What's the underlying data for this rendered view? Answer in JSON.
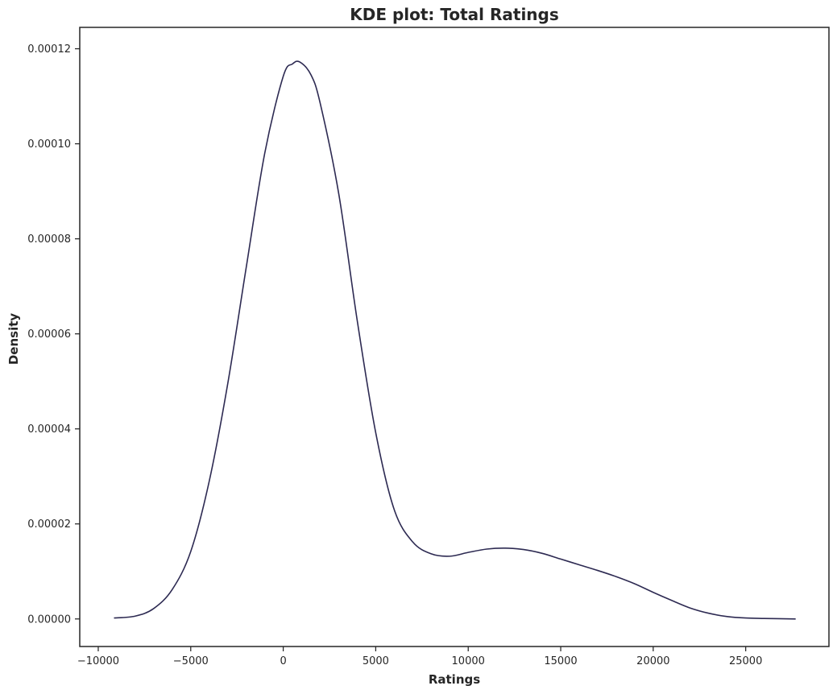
{
  "chart_data": {
    "type": "line",
    "title": "KDE plot: Total Ratings",
    "xlabel": "Ratings",
    "ylabel": "Density",
    "xlim": [
      -11000,
      29500
    ],
    "ylim": [
      -5.8e-06,
      0.0001245
    ],
    "x_ticks": [
      -10000,
      -5000,
      0,
      5000,
      10000,
      15000,
      20000,
      25000
    ],
    "x_tick_labels": [
      "−10000",
      "−5000",
      "0",
      "5000",
      "10000",
      "15000",
      "20000",
      "25000"
    ],
    "y_ticks": [
      0,
      2e-05,
      4e-05,
      6e-05,
      8e-05,
      0.0001,
      0.00012
    ],
    "y_tick_labels": [
      "0.00000",
      "0.00002",
      "0.00004",
      "0.00006",
      "0.00008",
      "0.00010",
      "0.00012"
    ],
    "grid": false,
    "legend": "none",
    "line_color": "#2d2a52",
    "series": [
      {
        "x": [
          -9150,
          -8000,
          -7000,
          -6000,
          -5000,
          -4000,
          -3000,
          -2000,
          -1000,
          0,
          500,
          900,
          1500,
          2000,
          3000,
          4000,
          5000,
          6000,
          7000,
          8000,
          9000,
          10000,
          11000,
          12000,
          13000,
          14000,
          15000,
          16000,
          17000,
          18000,
          19000,
          20000,
          21000,
          22000,
          23000,
          24000,
          25000,
          26000,
          27700
        ],
        "y": [
          2e-07,
          6e-07,
          2.2e-06,
          6.2e-06,
          1.42e-05,
          2.9e-05,
          4.95e-05,
          7.4e-05,
          9.8e-05,
          0.0001142,
          0.0001168,
          0.0001172,
          0.0001145,
          0.0001085,
          8.95e-05,
          6.28e-05,
          3.92e-05,
          2.3e-05,
          1.62e-05,
          1.37e-05,
          1.32e-05,
          1.4e-05,
          1.47e-05,
          1.49e-05,
          1.46e-05,
          1.38e-05,
          1.26e-05,
          1.14e-05,
          1.02e-05,
          8.9e-06,
          7.4e-06,
          5.6e-06,
          3.9e-06,
          2.3e-06,
          1.2e-06,
          5e-07,
          2e-07,
          1e-07,
          0.0
        ]
      }
    ]
  }
}
